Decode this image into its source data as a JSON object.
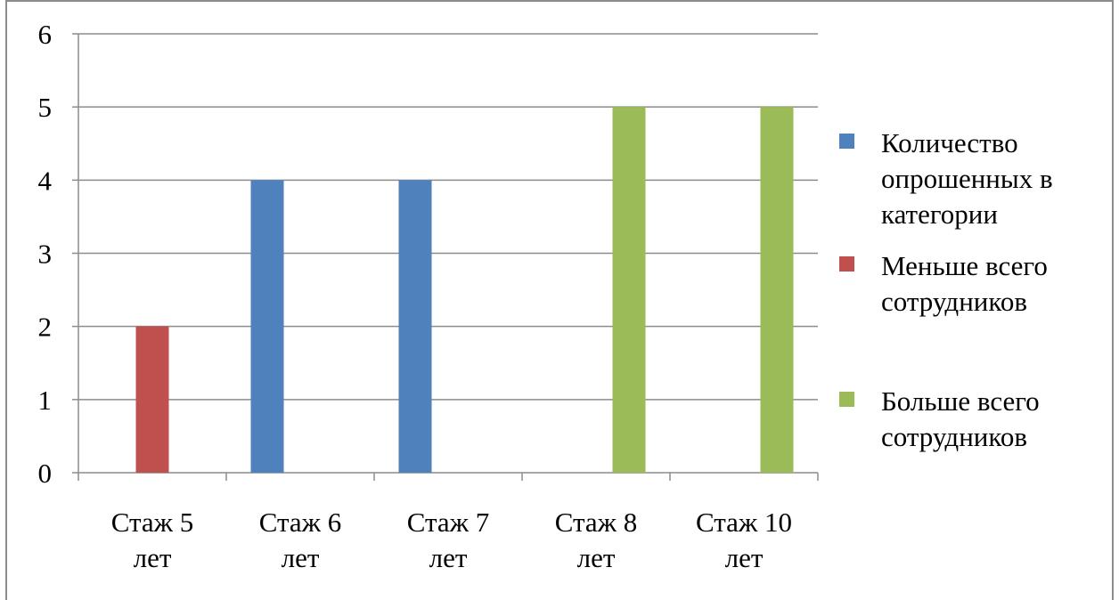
{
  "chart_data": {
    "type": "bar",
    "title": "",
    "xlabel": "",
    "ylabel": "",
    "categories": [
      [
        "Стаж 5",
        "лет"
      ],
      [
        "Стаж 6",
        "лет"
      ],
      [
        "Стаж 7",
        "лет"
      ],
      [
        "Стаж 8",
        "лет"
      ],
      [
        "Стаж 10",
        "лет"
      ]
    ],
    "ylim": [
      0,
      6
    ],
    "yticks": [
      "0",
      "1",
      "2",
      "3",
      "4",
      "5",
      "6"
    ],
    "grid": true,
    "legend_position": "right",
    "series": [
      {
        "name": [
          "Количество",
          "опрошенных в",
          "категории"
        ],
        "color": "#4f81bd",
        "values": [
          0,
          4,
          4,
          0,
          0
        ]
      },
      {
        "name": [
          "Меньше всего",
          "сотрудников"
        ],
        "color": "#c0504d",
        "values": [
          2,
          0,
          0,
          0,
          0
        ]
      },
      {
        "name": [
          "Больше всего",
          "сотрудников"
        ],
        "color": "#9bbb59",
        "values": [
          0,
          0,
          0,
          5,
          5
        ]
      }
    ]
  }
}
